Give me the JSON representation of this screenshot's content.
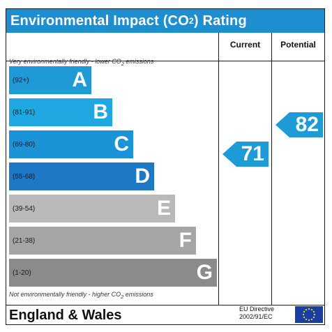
{
  "title": {
    "prefix": "Environmental Impact (CO",
    "sub": "2",
    "suffix": ") Rating"
  },
  "columns": {
    "current": "Current",
    "potential": "Potential"
  },
  "notes": {
    "top": {
      "prefix": "Very environmentally friendly - lower CO",
      "sub": "2",
      "suffix": " emissions"
    },
    "bottom": {
      "prefix": "Not environmentally friendly - higher CO",
      "sub": "2",
      "suffix": " emissions"
    }
  },
  "bands": [
    {
      "range": "(92+)",
      "letter": "A",
      "color": "#1f9ad6"
    },
    {
      "range": "(81-91)",
      "letter": "B",
      "color": "#1fa7e2"
    },
    {
      "range": "(69-80)",
      "letter": "C",
      "color": "#1c93d6"
    },
    {
      "range": "(55-68)",
      "letter": "D",
      "color": "#1f78c4"
    },
    {
      "range": "(39-54)",
      "letter": "E",
      "color": "#b9b9b9"
    },
    {
      "range": "(21-38)",
      "letter": "F",
      "color": "#a5a5a5"
    },
    {
      "range": "(1-20)",
      "letter": "G",
      "color": "#8b8b8b"
    }
  ],
  "ratings": {
    "current": "71",
    "potential": "82"
  },
  "footer": {
    "country": "England & Wales",
    "directive_line1": "EU Directive",
    "directive_line2": "2002/91/EC"
  },
  "colors": {
    "title_bar": "#1f8ed0",
    "arrow": "#1e9bd6",
    "eu_flag": "#1a3fa0",
    "eu_star": "#f6d32e"
  }
}
